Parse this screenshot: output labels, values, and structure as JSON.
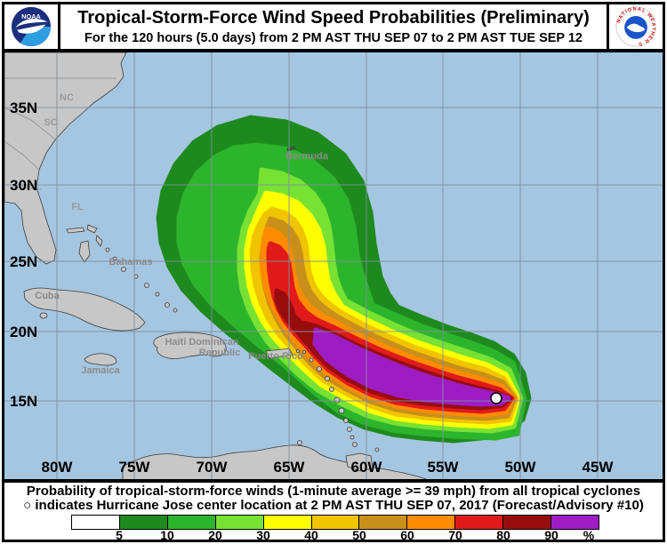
{
  "header": {
    "title": "Tropical-Storm-Force Wind Speed Probabilities (Preliminary)",
    "subtitle": "For the 120 hours (5.0 days) from 2 PM AST THU SEP 07 to 2 PM AST TUE SEP 12",
    "noaa_text": "NOAA",
    "nws_text": "NATIONAL WEATHER SERVICE"
  },
  "map": {
    "lat_labels": [
      "35N",
      "30N",
      "25N",
      "20N",
      "15N"
    ],
    "lon_labels": [
      "80W",
      "75W",
      "70W",
      "65W",
      "60W",
      "55W",
      "50W",
      "45W"
    ],
    "state_labels": [
      "NC",
      "SC",
      "FL"
    ],
    "places": {
      "bermuda": "Bermuda",
      "bahamas": "Bahamas",
      "cuba": "Cuba",
      "jamaica": "Jamaica",
      "haiti_dr1": "Haiti Dominican",
      "haiti_dr2": "Republic",
      "puerto_rico": "Puerto Rico"
    },
    "storm_name": "Jose",
    "center_marker": "white dot with black outline"
  },
  "colorbar": {
    "labels": [
      "5",
      "10",
      "20",
      "30",
      "40",
      "50",
      "60",
      "70",
      "80",
      "90",
      "%"
    ],
    "colors": [
      "#ffffff",
      "#1e8a1e",
      "#2db42d",
      "#77e234",
      "#ffff00",
      "#f0c400",
      "#c98f1b",
      "#ff8c00",
      "#e01a1a",
      "#970d0d",
      "#9e1cc4"
    ]
  },
  "footer": {
    "line1": "Probability of tropical-storm-force winds (1-minute average >= 39 mph) from all tropical cyclones",
    "marker": "O",
    "line2": "indicates Hurricane Jose center location at 2 PM AST THU SEP 07, 2017 (Forecast/Advisory #10)"
  },
  "chart_data": {
    "type": "heatmap",
    "title": "Tropical-Storm-Force Wind Speed Probabilities (Preliminary)",
    "probability_thresholds_pct": [
      5,
      10,
      20,
      30,
      40,
      50,
      60,
      70,
      80,
      90
    ],
    "lat_range": [
      "15N",
      "35N"
    ],
    "lon_range": [
      "80W",
      "45W"
    ],
    "max_probability_band": "90+% (purple) along swath from near 62W,21N to 51W,16N",
    "storm_center_approx": {
      "lon": "51.5W",
      "lat": "16N"
    }
  }
}
